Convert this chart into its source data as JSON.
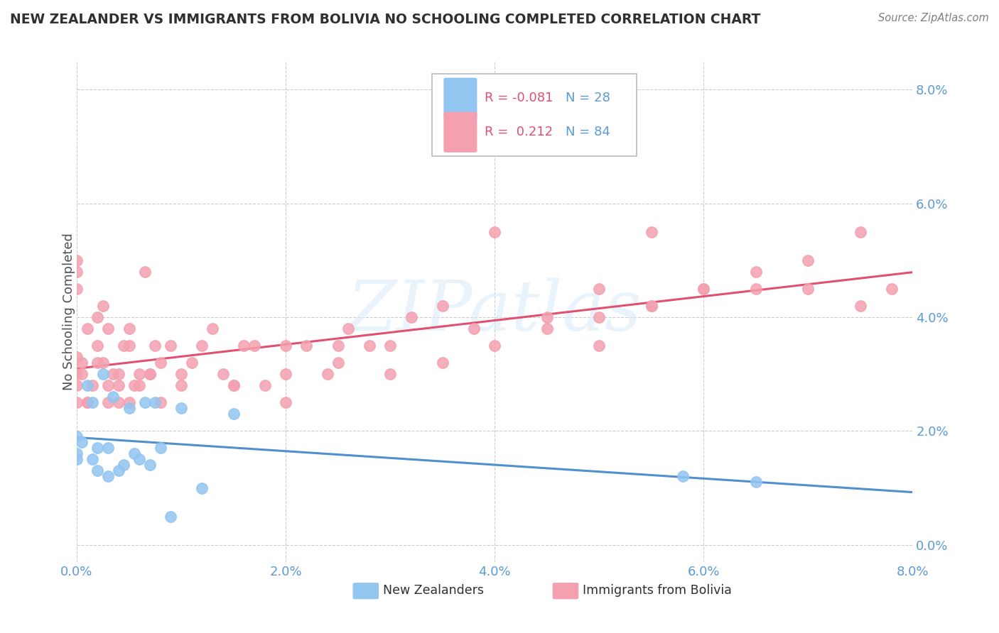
{
  "title": "NEW ZEALANDER VS IMMIGRANTS FROM BOLIVIA NO SCHOOLING COMPLETED CORRELATION CHART",
  "source_text": "Source: ZipAtlas.com",
  "ylabel": "No Schooling Completed",
  "watermark": "ZIPatlas",
  "xlim": [
    0.0,
    8.0
  ],
  "ylim": [
    -0.3,
    8.5
  ],
  "xtick_vals": [
    0,
    2,
    4,
    6,
    8
  ],
  "ytick_vals": [
    0,
    2,
    4,
    6,
    8
  ],
  "series1_color": "#92c5f0",
  "series2_color": "#f4a0b0",
  "trend1_color": "#5090d0",
  "trend2_color": "#e05070",
  "title_color": "#303030",
  "ylabel_color": "#505050",
  "tick_color": "#5b9bd5",
  "source_color": "#808080",
  "watermark_color": "#d8eaf8",
  "legend_r_color": "#e05070",
  "legend_n_color": "#5b9bd5",
  "legend_text1": "R = -0.081",
  "legend_n1": "N = 28",
  "legend_text2": "R =  0.212",
  "legend_n2": "N = 84",
  "nz_x": [
    0.0,
    0.0,
    0.0,
    0.05,
    0.1,
    0.15,
    0.15,
    0.2,
    0.2,
    0.25,
    0.3,
    0.3,
    0.35,
    0.4,
    0.45,
    0.5,
    0.55,
    0.6,
    0.65,
    0.7,
    0.75,
    0.8,
    0.9,
    1.0,
    1.2,
    1.5,
    5.8,
    6.5
  ],
  "nz_y": [
    1.6,
    1.5,
    1.9,
    1.8,
    2.8,
    1.5,
    2.5,
    1.3,
    1.7,
    3.0,
    1.2,
    1.7,
    2.6,
    1.3,
    1.4,
    2.4,
    1.6,
    1.5,
    2.5,
    1.4,
    2.5,
    1.7,
    0.5,
    2.4,
    1.0,
    2.3,
    1.2,
    1.1
  ],
  "bol_x": [
    0.0,
    0.0,
    0.0,
    0.0,
    0.0,
    0.0,
    0.0,
    0.05,
    0.1,
    0.1,
    0.15,
    0.2,
    0.2,
    0.25,
    0.25,
    0.3,
    0.3,
    0.35,
    0.4,
    0.4,
    0.45,
    0.5,
    0.5,
    0.55,
    0.6,
    0.65,
    0.7,
    0.75,
    0.8,
    0.9,
    1.0,
    1.1,
    1.2,
    1.3,
    1.4,
    1.5,
    1.6,
    1.7,
    1.8,
    2.0,
    2.0,
    2.2,
    2.4,
    2.5,
    2.6,
    2.8,
    3.0,
    3.2,
    3.5,
    3.8,
    4.0,
    4.5,
    5.0,
    5.0,
    5.5,
    5.5,
    6.0,
    6.5,
    7.0,
    7.5,
    7.8,
    0.05,
    0.1,
    0.2,
    0.3,
    0.4,
    0.5,
    0.6,
    0.7,
    0.8,
    1.0,
    1.5,
    2.0,
    2.5,
    3.0,
    3.5,
    4.0,
    4.5,
    5.0,
    5.5,
    6.0,
    6.5,
    7.0,
    7.5
  ],
  "bol_y": [
    2.5,
    2.8,
    3.0,
    3.3,
    4.5,
    4.8,
    5.0,
    3.2,
    3.8,
    2.5,
    2.8,
    3.5,
    4.0,
    3.2,
    4.2,
    3.8,
    2.5,
    3.0,
    3.0,
    2.8,
    3.5,
    3.5,
    3.8,
    2.8,
    2.8,
    4.8,
    3.0,
    3.5,
    3.2,
    3.5,
    3.0,
    3.2,
    3.5,
    3.8,
    3.0,
    2.8,
    3.5,
    3.5,
    2.8,
    3.0,
    3.5,
    3.5,
    3.0,
    3.5,
    3.8,
    3.5,
    3.5,
    4.0,
    4.2,
    3.8,
    5.5,
    4.0,
    4.5,
    3.5,
    4.2,
    5.5,
    4.5,
    4.5,
    4.5,
    4.2,
    4.5,
    3.0,
    2.5,
    3.2,
    2.8,
    2.5,
    2.5,
    3.0,
    3.0,
    2.5,
    2.8,
    2.8,
    2.5,
    3.2,
    3.0,
    3.2,
    3.5,
    3.8,
    4.0,
    4.2,
    4.5,
    4.8,
    5.0,
    5.5
  ]
}
